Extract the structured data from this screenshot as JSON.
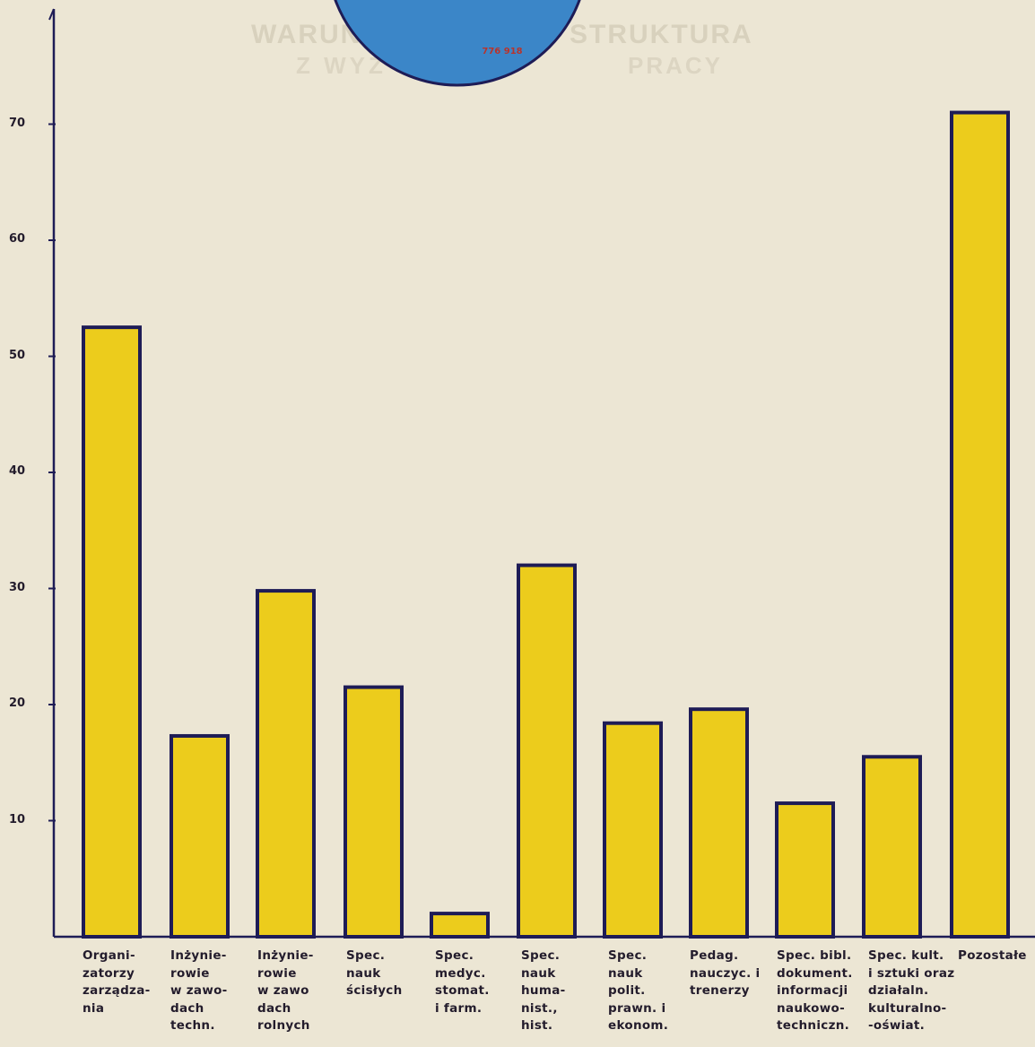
{
  "chart_data": {
    "type": "bar",
    "categories": [
      "Organi-\nzatorzy\nzarządza-\nnia",
      "Inżynie-\nrowie\nw zawo-\ndach\ntechn.",
      "Inżynie-\nrowie\nw zawo\ndach\nrolnych",
      "Spec.\nnauk\nścisłych",
      "Spec.\nmedyc.\nstomat.\ni farm.",
      "Spec.\nnauk\nhuma-\nnist.,\nhist.",
      "Spec.\nnauk\npolit.\nprawn. i\nekonom.",
      "Pedag.\nnauczyc. i\ntrenerzy",
      "Spec. bibl.\ndokument.\ninformacji\nnaukowo-\ntechniczn.",
      "Spec. kult.\ni sztuki oraz\ndziałaln.\nkulturalno-\n-oświat.",
      "Pozostałe"
    ],
    "values": [
      52.5,
      17.3,
      29.8,
      21.5,
      2.0,
      32.0,
      18.4,
      19.6,
      11.5,
      15.5,
      71.0
    ],
    "yticks": [
      "10",
      "20",
      "30",
      "40",
      "50",
      "60",
      "70"
    ],
    "ylim": [
      0,
      81
    ],
    "grid": false,
    "bar_color": "#eccc1c",
    "bar_edge_color": "#1e1c56",
    "pie_value": "776 918",
    "pie_color": "#3b86c8"
  }
}
